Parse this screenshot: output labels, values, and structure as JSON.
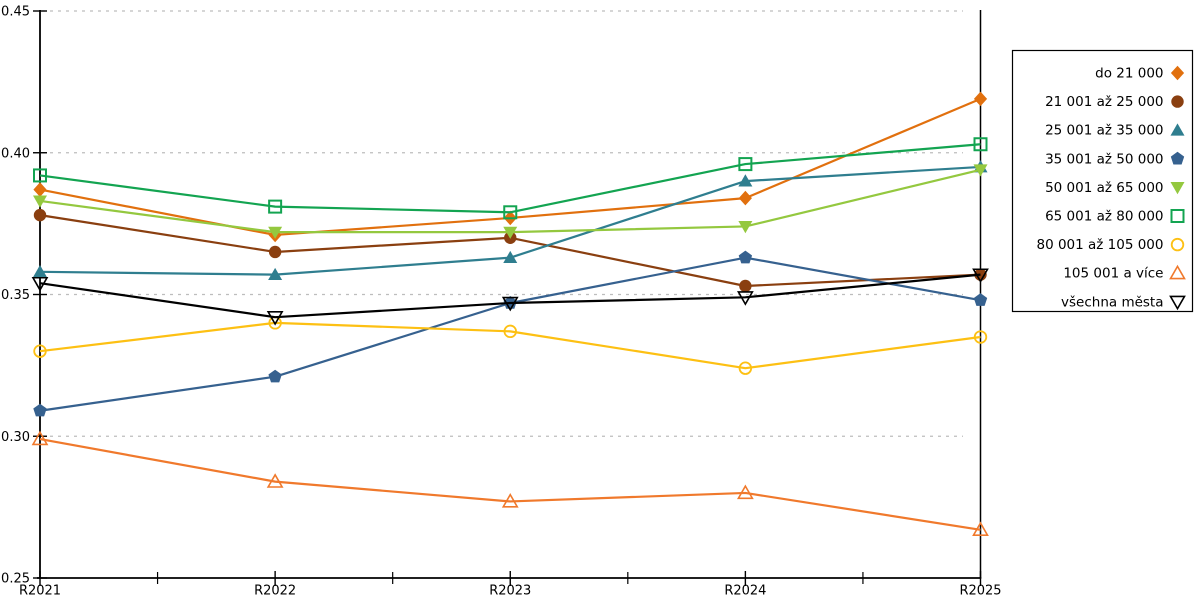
{
  "chart_data": {
    "type": "line",
    "title": "",
    "xlabel": "",
    "ylabel": "",
    "x_labels": [
      "R2021",
      "R2022",
      "R2023",
      "R2024",
      "R2025"
    ],
    "y_tick_labels": [
      "0.25",
      "0.30",
      "0.35",
      "0.40",
      "0.45"
    ],
    "y_ticks": [
      0.25,
      0.3,
      0.35,
      0.4,
      0.45
    ],
    "ylim": [
      0.25,
      0.45
    ],
    "grid": "horizontal-dashed",
    "grid_color": "#bdbdbd",
    "legend_position": "right-outside",
    "series": [
      {
        "name": "do 21 000",
        "color": "#e1700e",
        "marker": "diamond-filled",
        "values": [
          0.387,
          0.371,
          0.377,
          0.384,
          0.419
        ]
      },
      {
        "name": "21 001 až 25 000",
        "color": "#8a3f10",
        "marker": "circle-filled",
        "values": [
          0.378,
          0.365,
          0.37,
          0.353,
          0.357
        ]
      },
      {
        "name": "25 001 až 35 000",
        "color": "#2f7e8f",
        "marker": "triangle-up-filled",
        "values": [
          0.358,
          0.357,
          0.363,
          0.39,
          0.395
        ]
      },
      {
        "name": "35 001 až 50 000",
        "color": "#36618f",
        "marker": "pentagon-filled",
        "values": [
          0.309,
          0.321,
          0.347,
          0.363,
          0.348
        ]
      },
      {
        "name": "50 001 až 65 000",
        "color": "#94c83f",
        "marker": "triangle-down-filled",
        "values": [
          0.383,
          0.372,
          0.372,
          0.374,
          0.394
        ]
      },
      {
        "name": "65 001 až 80 000",
        "color": "#13a451",
        "marker": "square-open",
        "values": [
          0.392,
          0.381,
          0.379,
          0.396,
          0.403
        ]
      },
      {
        "name": "80 001 až 105 000",
        "color": "#fdc013",
        "marker": "circle-open",
        "values": [
          0.33,
          0.34,
          0.337,
          0.324,
          0.335
        ]
      },
      {
        "name": "105 001 a více",
        "color": "#f0792c",
        "marker": "triangle-up-open",
        "values": [
          0.299,
          0.284,
          0.277,
          0.28,
          0.267
        ]
      },
      {
        "name": "všechna města",
        "color": "#000000",
        "marker": "triangle-down-open",
        "values": [
          0.354,
          0.342,
          0.347,
          0.349,
          0.357
        ]
      }
    ]
  }
}
